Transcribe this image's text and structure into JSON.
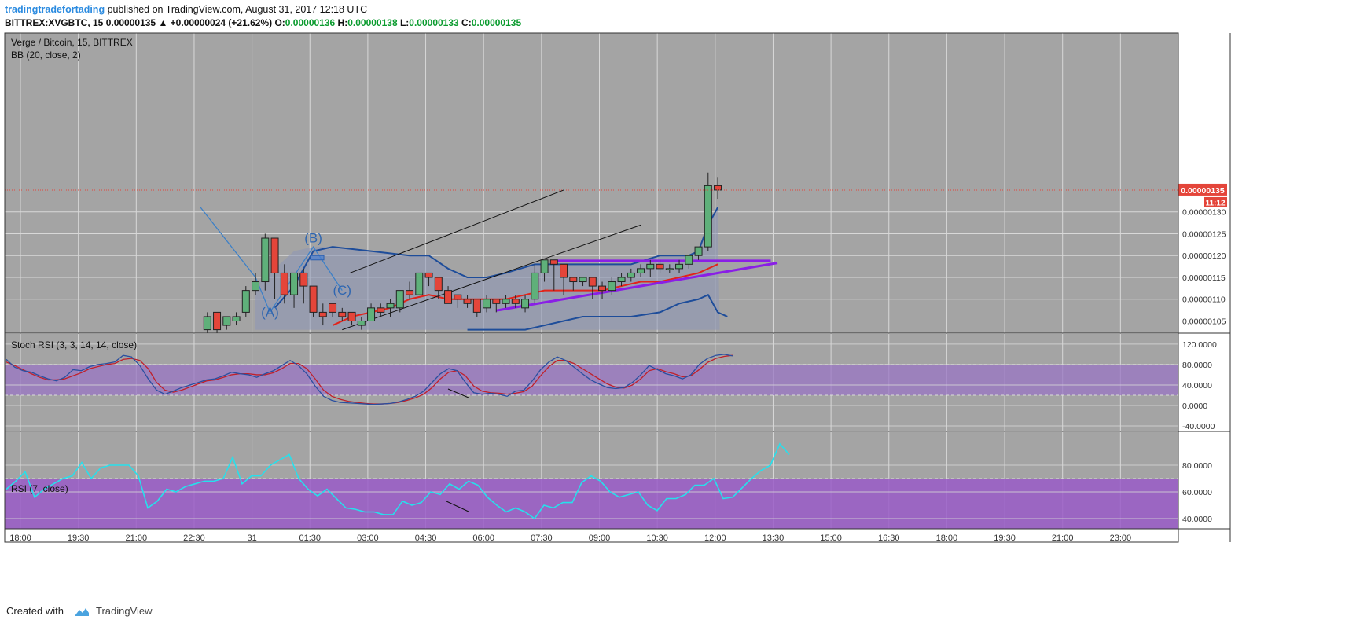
{
  "header": {
    "author": "tradingtradefortading",
    "published": "published on TradingView.com, August 31, 2017 12:18 UTC",
    "symbol": "BITTREX:XVGBTC, 15",
    "last": "0.00000135",
    "change": "▲ +0.00000024 (+21.62%)",
    "o_label": "O:",
    "o_value": "0.00000136",
    "h_label": "H:",
    "h_value": "0.00000138",
    "l_label": "L:",
    "l_value": "0.00000133",
    "c_label": "C:",
    "c_value": "0.00000135"
  },
  "footer": {
    "created_with": "Created with",
    "brand": "TradingView"
  },
  "colors": {
    "panel_bg": "#a4a4a4",
    "grid": "#d8d8d8",
    "bull": "#5fb07a",
    "bear": "#e4453a",
    "bb_band": "#1e4d9a",
    "bb_fill": "#8c96b6",
    "bb_basis": "#e2231a",
    "stoch_k": "#2a4fa0",
    "stoch_d": "#c0202a",
    "stoch_band": "#9a75c4",
    "rsi_line": "#26e0ec",
    "rsi_band": "#9a5cc8",
    "trend_purple": "#8a1fe6",
    "price_label": "#e4453a"
  },
  "chart_data": [
    {
      "type": "candlestick",
      "title": "Verge / Bitcoin, 15, BITTREX",
      "indicator": "BB (20, close, 2)",
      "y_ticks": [
        "0.00000105",
        "0.00000110",
        "0.00000115",
        "0.00000120",
        "0.00000125",
        "0.00000130"
      ],
      "ylim": [
        1.035e-06,
        1.41e-06
      ],
      "x_ticks": [
        "18:00",
        "19:30",
        "21:00",
        "22:30",
        "31",
        "01:30",
        "03:00",
        "04:30",
        "06:00",
        "07:30",
        "09:00",
        "10:30",
        "12:00",
        "13:30",
        "15:00",
        "16:30",
        "18:00",
        "19:30",
        "21:00",
        "23:00"
      ],
      "last_price_label": "0.00000135",
      "countdown_label": "11:12",
      "wave_labels": [
        "(A)",
        "(B)",
        "(C)"
      ],
      "candles": [
        [
          1.03e-06,
          1.06e-06,
          1.02e-06,
          1.07e-06
        ],
        [
          1.07e-06,
          1.03e-06,
          1.02e-06,
          1.07e-06
        ],
        [
          1.04e-06,
          1.06e-06,
          1.03e-06,
          1.06e-06
        ],
        [
          1.05e-06,
          1.06e-06,
          1.04e-06,
          1.07e-06
        ],
        [
          1.07e-06,
          1.12e-06,
          1.06e-06,
          1.13e-06
        ],
        [
          1.12e-06,
          1.14e-06,
          1.11e-06,
          1.16e-06
        ],
        [
          1.14e-06,
          1.24e-06,
          1.12e-06,
          1.25e-06
        ],
        [
          1.24e-06,
          1.16e-06,
          1.1e-06,
          1.24e-06
        ],
        [
          1.16e-06,
          1.11e-06,
          1.09e-06,
          1.18e-06
        ],
        [
          1.11e-06,
          1.16e-06,
          1.08e-06,
          1.16e-06
        ],
        [
          1.16e-06,
          1.13e-06,
          1.09e-06,
          1.17e-06
        ],
        [
          1.13e-06,
          1.07e-06,
          1.06e-06,
          1.13e-06
        ],
        [
          1.07e-06,
          1.06e-06,
          1.04e-06,
          1.09e-06
        ],
        [
          1.09e-06,
          1.07e-06,
          1.06e-06,
          1.09e-06
        ],
        [
          1.07e-06,
          1.06e-06,
          1.05e-06,
          1.08e-06
        ],
        [
          1.07e-06,
          1.05e-06,
          1.04e-06,
          1.07e-06
        ],
        [
          1.04e-06,
          1.05e-06,
          1.03e-06,
          1.06e-06
        ],
        [
          1.05e-06,
          1.08e-06,
          1.05e-06,
          1.09e-06
        ],
        [
          1.08e-06,
          1.07e-06,
          1.06e-06,
          1.09e-06
        ],
        [
          1.08e-06,
          1.09e-06,
          1.06e-06,
          1.1e-06
        ],
        [
          1.08e-06,
          1.12e-06,
          1.07e-06,
          1.12e-06
        ],
        [
          1.12e-06,
          1.11e-06,
          1.1e-06,
          1.14e-06
        ],
        [
          1.11e-06,
          1.16e-06,
          1.11e-06,
          1.16e-06
        ],
        [
          1.16e-06,
          1.15e-06,
          1.13e-06,
          1.16e-06
        ],
        [
          1.15e-06,
          1.12e-06,
          1.1e-06,
          1.15e-06
        ],
        [
          1.12e-06,
          1.09e-06,
          1.09e-06,
          1.13e-06
        ],
        [
          1.11e-06,
          1.1e-06,
          1.08e-06,
          1.11e-06
        ],
        [
          1.1e-06,
          1.09e-06,
          1.08e-06,
          1.11e-06
        ],
        [
          1.1e-06,
          1.07e-06,
          1.06e-06,
          1.1e-06
        ],
        [
          1.08e-06,
          1.1e-06,
          1.07e-06,
          1.11e-06
        ],
        [
          1.1e-06,
          1.09e-06,
          1.07e-06,
          1.1e-06
        ],
        [
          1.09e-06,
          1.1e-06,
          1.08e-06,
          1.11e-06
        ],
        [
          1.1e-06,
          1.09e-06,
          1.08e-06,
          1.11e-06
        ],
        [
          1.08e-06,
          1.1e-06,
          1.07e-06,
          1.11e-06
        ],
        [
          1.1e-06,
          1.16e-06,
          1.09e-06,
          1.18e-06
        ],
        [
          1.16e-06,
          1.19e-06,
          1.14e-06,
          1.19e-06
        ],
        [
          1.19e-06,
          1.18e-06,
          1.12e-06,
          1.19e-06
        ],
        [
          1.18e-06,
          1.15e-06,
          1.11e-06,
          1.18e-06
        ],
        [
          1.15e-06,
          1.14e-06,
          1.12e-06,
          1.15e-06
        ],
        [
          1.14e-06,
          1.15e-06,
          1.13e-06,
          1.15e-06
        ],
        [
          1.15e-06,
          1.13e-06,
          1.1e-06,
          1.15e-06
        ],
        [
          1.13e-06,
          1.12e-06,
          1.1e-06,
          1.14e-06
        ],
        [
          1.12e-06,
          1.14e-06,
          1.11e-06,
          1.15e-06
        ],
        [
          1.14e-06,
          1.15e-06,
          1.13e-06,
          1.16e-06
        ],
        [
          1.15e-06,
          1.16e-06,
          1.14e-06,
          1.17e-06
        ],
        [
          1.16e-06,
          1.17e-06,
          1.15e-06,
          1.18e-06
        ],
        [
          1.17e-06,
          1.18e-06,
          1.15e-06,
          1.19e-06
        ],
        [
          1.18e-06,
          1.17e-06,
          1.16e-06,
          1.19e-06
        ],
        [
          1.17e-06,
          1.17e-06,
          1.16e-06,
          1.18e-06
        ],
        [
          1.17e-06,
          1.18e-06,
          1.16e-06,
          1.19e-06
        ],
        [
          1.18e-06,
          1.2e-06,
          1.17e-06,
          1.2e-06
        ],
        [
          1.2e-06,
          1.22e-06,
          1.19e-06,
          1.22e-06
        ],
        [
          1.22e-06,
          1.36e-06,
          1.21e-06,
          1.39e-06
        ],
        [
          1.36e-06,
          1.35e-06,
          1.33e-06,
          1.38e-06
        ]
      ],
      "bb_upper": [
        [
          7,
          1.08e-06
        ],
        [
          9,
          1.13e-06
        ],
        [
          11,
          1.21e-06
        ],
        [
          13,
          1.22e-06
        ],
        [
          17,
          1.21e-06
        ],
        [
          21,
          1.2e-06
        ],
        [
          23,
          1.2e-06
        ],
        [
          25,
          1.17e-06
        ],
        [
          27,
          1.15e-06
        ],
        [
          29,
          1.15e-06
        ],
        [
          31,
          1.16e-06
        ],
        [
          34,
          1.18e-06
        ],
        [
          37,
          1.18e-06
        ],
        [
          41,
          1.18e-06
        ],
        [
          44,
          1.18e-06
        ],
        [
          47,
          1.2e-06
        ],
        [
          50,
          1.2e-06
        ],
        [
          51,
          1.21e-06
        ],
        [
          52,
          1.27e-06
        ],
        [
          53,
          1.31e-06
        ]
      ],
      "bb_basis": [
        [
          13,
          1.04e-06
        ],
        [
          15,
          1.06e-06
        ],
        [
          17,
          1.07e-06
        ],
        [
          19,
          1.08e-06
        ],
        [
          21,
          1.1e-06
        ],
        [
          23,
          1.11e-06
        ],
        [
          25,
          1.1e-06
        ],
        [
          27,
          1.1e-06
        ],
        [
          29,
          1.1e-06
        ],
        [
          31,
          1.1e-06
        ],
        [
          33,
          1.11e-06
        ],
        [
          35,
          1.12e-06
        ],
        [
          37,
          1.12e-06
        ],
        [
          39,
          1.12e-06
        ],
        [
          41,
          1.12e-06
        ],
        [
          43,
          1.13e-06
        ],
        [
          45,
          1.14e-06
        ],
        [
          47,
          1.14e-06
        ],
        [
          49,
          1.15e-06
        ],
        [
          51,
          1.16e-06
        ],
        [
          52,
          1.17e-06
        ],
        [
          53,
          1.18e-06
        ]
      ],
      "bb_lower": [
        [
          27,
          1.03e-06
        ],
        [
          31,
          1.03e-06
        ],
        [
          33,
          1.03e-06
        ],
        [
          35,
          1.04e-06
        ],
        [
          37,
          1.05e-06
        ],
        [
          39,
          1.06e-06
        ],
        [
          41,
          1.06e-06
        ],
        [
          44,
          1.06e-06
        ],
        [
          47,
          1.07e-06
        ],
        [
          49,
          1.09e-06
        ],
        [
          51,
          1.1e-06
        ],
        [
          52,
          1.11e-06
        ],
        [
          53,
          1.07e-06
        ],
        [
          54,
          1.06e-06
        ]
      ],
      "bb_area_upper": [
        [
          5,
          1.13e-06
        ],
        [
          7,
          1.17e-06
        ],
        [
          9,
          1.21e-06
        ],
        [
          11,
          1.22e-06
        ],
        [
          13,
          1.22e-06
        ],
        [
          17,
          1.21e-06
        ],
        [
          21,
          1.2e-06
        ],
        [
          23,
          1.2e-06
        ],
        [
          25,
          1.17e-06
        ],
        [
          27,
          1.15e-06
        ],
        [
          29,
          1.15e-06
        ],
        [
          31,
          1.16e-06
        ],
        [
          34,
          1.18e-06
        ],
        [
          37,
          1.18e-06
        ],
        [
          41,
          1.18e-06
        ],
        [
          44,
          1.18e-06
        ],
        [
          47,
          1.2e-06
        ],
        [
          50,
          1.2e-06
        ],
        [
          51,
          1.21e-06
        ],
        [
          52,
          1.27e-06
        ],
        [
          53,
          1.31e-06
        ]
      ],
      "wave_path": [
        [
          -0.7,
          1.31e-06
        ],
        [
          5.0,
          1.15e-06
        ],
        [
          6.5,
          1.07e-06
        ],
        [
          11.0,
          1.22e-06
        ],
        [
          14.0,
          1.12e-06
        ]
      ],
      "wave_label_points": [
        [
          6.5,
          1.06e-06
        ],
        [
          11.0,
          1.23e-06
        ],
        [
          14.0,
          1.11e-06
        ]
      ],
      "wave_box": [
        10.7,
        1.19e-06,
        12.1,
        1.2e-06
      ],
      "black_trendline": [
        [
          14.8,
          1.16e-06
        ],
        [
          37.0,
          1.35e-06
        ]
      ],
      "black_trendline_2": [
        [
          14.0,
          1.03e-06
        ],
        [
          45.0,
          1.27e-06
        ]
      ],
      "purple_hline": [
        [
          36.0,
          1.188e-06
        ],
        [
          58.5,
          1.188e-06
        ]
      ],
      "purple_trendline": [
        [
          30.0,
          1.074e-06
        ],
        [
          59.2,
          1.183e-06
        ]
      ]
    },
    {
      "type": "line",
      "title": "Stoch RSI (3, 3, 14, 14, close)",
      "ylim": [
        -40,
        120
      ],
      "y_ticks": [
        "120.0000",
        "80.0000",
        "40.0000",
        "0.0000",
        "-40.0000"
      ],
      "band": [
        20,
        80
      ],
      "k": [
        90,
        75,
        68,
        65,
        58,
        52,
        48,
        55,
        70,
        68,
        76,
        80,
        82,
        85,
        98,
        95,
        78,
        52,
        30,
        22,
        28,
        35,
        40,
        45,
        50,
        52,
        58,
        65,
        62,
        60,
        55,
        62,
        68,
        78,
        88,
        78,
        62,
        38,
        18,
        10,
        6,
        5,
        4,
        3,
        2,
        3,
        4,
        7,
        12,
        18,
        28,
        45,
        62,
        72,
        68,
        45,
        25,
        22,
        24,
        22,
        18,
        28,
        30,
        48,
        70,
        85,
        95,
        88,
        75,
        62,
        50,
        42,
        35,
        33,
        35,
        45,
        60,
        78,
        70,
        62,
        58,
        52,
        60,
        80,
        92,
        98,
        100,
        97
      ],
      "d": [
        85,
        78,
        70,
        62,
        55,
        50,
        50,
        52,
        58,
        64,
        72,
        76,
        80,
        82,
        90,
        92,
        88,
        72,
        45,
        30,
        26,
        30,
        36,
        42,
        48,
        50,
        55,
        60,
        62,
        62,
        60,
        60,
        64,
        72,
        82,
        82,
        72,
        52,
        30,
        18,
        12,
        8,
        6,
        4,
        3,
        3,
        4,
        6,
        10,
        15,
        22,
        35,
        52,
        65,
        68,
        58,
        38,
        28,
        25,
        24,
        22,
        24,
        27,
        38,
        58,
        76,
        88,
        88,
        82,
        72,
        62,
        52,
        42,
        36,
        34,
        40,
        52,
        68,
        72,
        66,
        62,
        56,
        58,
        70,
        84,
        92,
        96,
        98
      ]
    },
    {
      "type": "line",
      "title": "RSI (7, close)",
      "ylim": [
        25,
        105
      ],
      "y_ticks": [
        "80.0000",
        "60.0000",
        "40.0000"
      ],
      "band": [
        30,
        70
      ],
      "values": [
        62,
        68,
        75,
        56,
        62,
        66,
        70,
        72,
        82,
        70,
        78,
        80,
        80,
        80,
        72,
        48,
        53,
        62,
        60,
        64,
        66,
        68,
        68,
        70,
        86,
        66,
        72,
        72,
        80,
        84,
        88,
        70,
        62,
        57,
        62,
        55,
        48,
        47,
        45,
        45,
        43,
        43,
        53,
        50,
        52,
        60,
        58,
        66,
        62,
        68,
        65,
        56,
        50,
        45,
        48,
        45,
        40,
        50,
        48,
        52,
        52,
        67,
        72,
        68,
        60,
        56,
        58,
        60,
        50,
        46,
        55,
        55,
        58,
        65,
        65,
        70,
        55,
        56,
        63,
        70,
        76,
        80,
        96,
        88
      ]
    }
  ]
}
